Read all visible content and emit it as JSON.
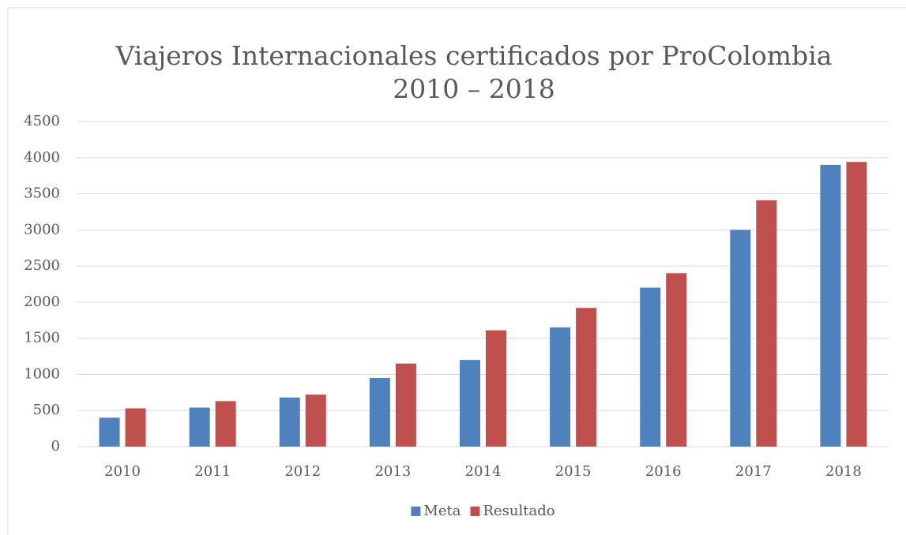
{
  "chart_data": {
    "type": "bar",
    "title": [
      "Viajeros Internacionales certificados por ProColombia",
      "2010 – 2018"
    ],
    "categories": [
      "2010",
      "2011",
      "2012",
      "2013",
      "2014",
      "2015",
      "2016",
      "2017",
      "2018"
    ],
    "series": [
      {
        "name": "Meta",
        "color": "#4f81bd",
        "values": [
          400,
          540,
          680,
          950,
          1200,
          1650,
          2200,
          3000,
          3900
        ]
      },
      {
        "name": "Resultado",
        "color": "#c0504d",
        "values": [
          530,
          630,
          720,
          1150,
          1610,
          1920,
          2400,
          3410,
          3940
        ]
      }
    ],
    "ylim": [
      0,
      4500
    ],
    "yticks": [
      0,
      500,
      1000,
      1500,
      2000,
      2500,
      3000,
      3500,
      4000,
      4500
    ],
    "grid": true,
    "legend": "bottom"
  }
}
